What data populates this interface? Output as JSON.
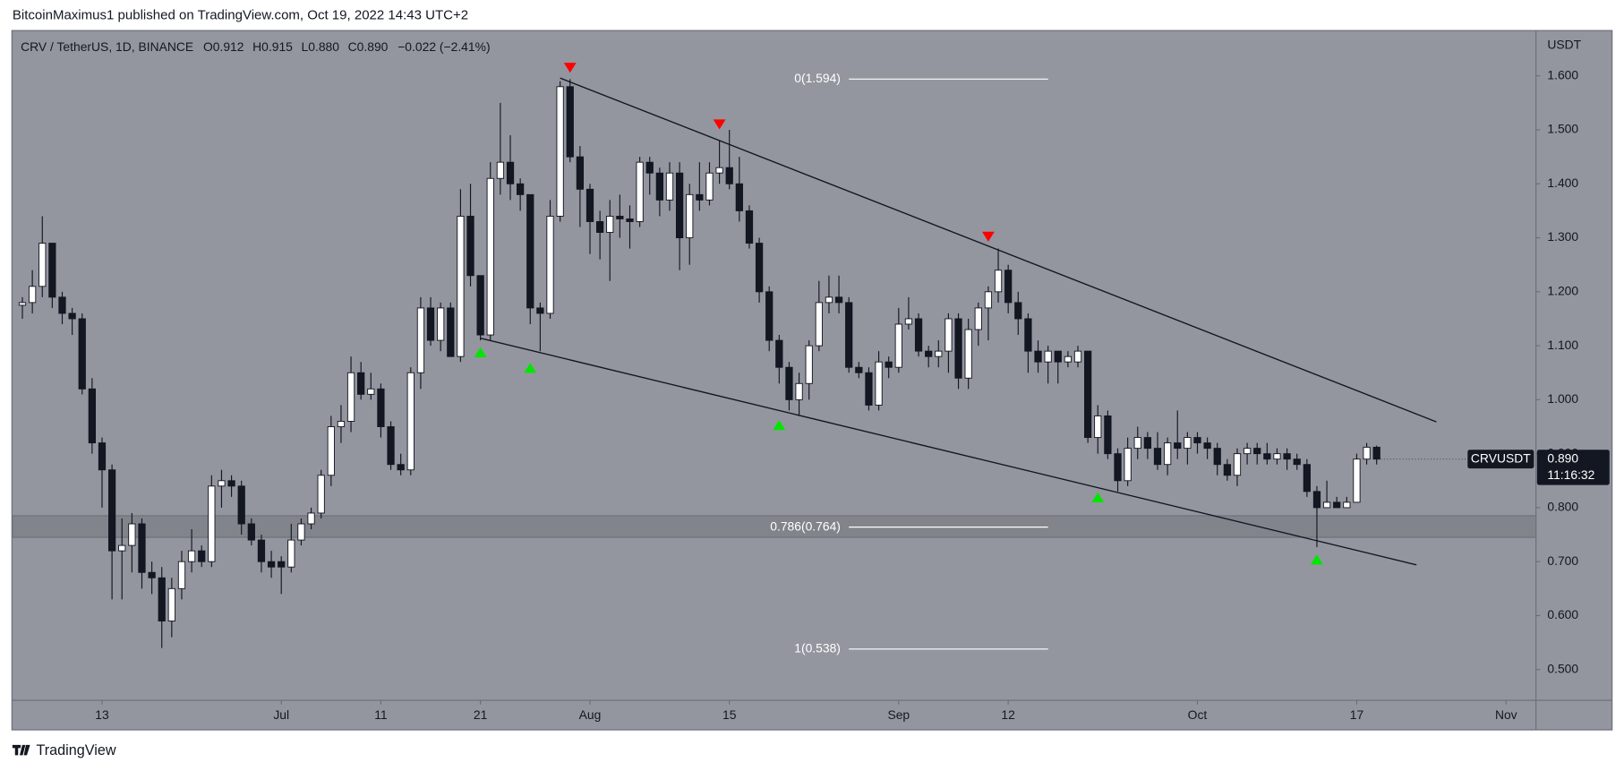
{
  "header": "BitcoinMaximus1 published on TradingView.com, Oct 19, 2022 14:43 UTC+2",
  "footer": "TradingView",
  "chart_data": {
    "type": "candlestick",
    "symbol": "CRV / TetherUS, 1D, BINANCE",
    "ohlc_labels": [
      "O",
      "H",
      "L",
      "C"
    ],
    "ohlc_values": [
      "0.912",
      "0.915",
      "0.880",
      "0.890"
    ],
    "change": "−0.022 (−2.41%)",
    "y_axis_label": "USDT",
    "price_tag": {
      "symbol": "CRVUSDT",
      "price": "0.890",
      "countdown": "11:16:32"
    },
    "up_color": "#ffffff",
    "down_color": "#131722",
    "wick_color": "#131722",
    "xlim": [
      "2022-06-04",
      "2022-11-04"
    ],
    "ylim": [
      0.443,
      1.683
    ],
    "yticks": [
      {
        "value": 0.5,
        "label": "0.500"
      },
      {
        "value": 0.6,
        "label": "0.600"
      },
      {
        "value": 0.7,
        "label": "0.700"
      },
      {
        "value": 0.8,
        "label": "0.800"
      },
      {
        "value": 0.9,
        "label": "0.900"
      },
      {
        "value": 1.0,
        "label": "1.000"
      },
      {
        "value": 1.1,
        "label": "1.100"
      },
      {
        "value": 1.2,
        "label": "1.200"
      },
      {
        "value": 1.3,
        "label": "1.300"
      },
      {
        "value": 1.4,
        "label": "1.400"
      },
      {
        "value": 1.5,
        "label": "1.500"
      },
      {
        "value": 1.6,
        "label": "1.600"
      }
    ],
    "xticks": [
      {
        "value": "2022-06-13",
        "label": "13"
      },
      {
        "value": "2022-07-01",
        "label": "Jul"
      },
      {
        "value": "2022-07-11",
        "label": "11"
      },
      {
        "value": "2022-07-21",
        "label": "21"
      },
      {
        "value": "2022-08-01",
        "label": "Aug"
      },
      {
        "value": "2022-08-15",
        "label": "15"
      },
      {
        "value": "2022-09-01",
        "label": "Sep"
      },
      {
        "value": "2022-09-12",
        "label": "12"
      },
      {
        "value": "2022-10-01",
        "label": "Oct"
      },
      {
        "value": "2022-10-17",
        "label": "17"
      },
      {
        "value": "2022-11-01",
        "label": "Nov"
      }
    ],
    "grid": false,
    "x": [
      "2022-06-05",
      "2022-06-06",
      "2022-06-07",
      "2022-06-08",
      "2022-06-09",
      "2022-06-10",
      "2022-06-11",
      "2022-06-12",
      "2022-06-13",
      "2022-06-14",
      "2022-06-15",
      "2022-06-16",
      "2022-06-17",
      "2022-06-18",
      "2022-06-19",
      "2022-06-20",
      "2022-06-21",
      "2022-06-22",
      "2022-06-23",
      "2022-06-24",
      "2022-06-25",
      "2022-06-26",
      "2022-06-27",
      "2022-06-28",
      "2022-06-29",
      "2022-06-30",
      "2022-07-01",
      "2022-07-02",
      "2022-07-03",
      "2022-07-04",
      "2022-07-05",
      "2022-07-06",
      "2022-07-07",
      "2022-07-08",
      "2022-07-09",
      "2022-07-10",
      "2022-07-11",
      "2022-07-12",
      "2022-07-13",
      "2022-07-14",
      "2022-07-15",
      "2022-07-16",
      "2022-07-17",
      "2022-07-18",
      "2022-07-19",
      "2022-07-20",
      "2022-07-21",
      "2022-07-22",
      "2022-07-23",
      "2022-07-24",
      "2022-07-25",
      "2022-07-26",
      "2022-07-27",
      "2022-07-28",
      "2022-07-29",
      "2022-07-30",
      "2022-07-31",
      "2022-08-01",
      "2022-08-02",
      "2022-08-03",
      "2022-08-04",
      "2022-08-05",
      "2022-08-06",
      "2022-08-07",
      "2022-08-08",
      "2022-08-09",
      "2022-08-10",
      "2022-08-11",
      "2022-08-12",
      "2022-08-13",
      "2022-08-14",
      "2022-08-15",
      "2022-08-16",
      "2022-08-17",
      "2022-08-18",
      "2022-08-19",
      "2022-08-20",
      "2022-08-21",
      "2022-08-22",
      "2022-08-23",
      "2022-08-24",
      "2022-08-25",
      "2022-08-26",
      "2022-08-27",
      "2022-08-28",
      "2022-08-29",
      "2022-08-30",
      "2022-08-31",
      "2022-09-01",
      "2022-09-02",
      "2022-09-03",
      "2022-09-04",
      "2022-09-05",
      "2022-09-06",
      "2022-09-07",
      "2022-09-08",
      "2022-09-09",
      "2022-09-10",
      "2022-09-11",
      "2022-09-12",
      "2022-09-13",
      "2022-09-14",
      "2022-09-15",
      "2022-09-16",
      "2022-09-17",
      "2022-09-18",
      "2022-09-19",
      "2022-09-20",
      "2022-09-21",
      "2022-09-22",
      "2022-09-23",
      "2022-09-24",
      "2022-09-25",
      "2022-09-26",
      "2022-09-27",
      "2022-09-28",
      "2022-09-29",
      "2022-09-30",
      "2022-10-01",
      "2022-10-02",
      "2022-10-03",
      "2022-10-04",
      "2022-10-05",
      "2022-10-06",
      "2022-10-07",
      "2022-10-08",
      "2022-10-09",
      "2022-10-10",
      "2022-10-11",
      "2022-10-12",
      "2022-10-13",
      "2022-10-14",
      "2022-10-15",
      "2022-10-16",
      "2022-10-17",
      "2022-10-18",
      "2022-10-19"
    ],
    "open": [
      1.175,
      1.18,
      1.21,
      1.29,
      1.19,
      1.16,
      1.15,
      1.02,
      0.92,
      0.87,
      0.72,
      0.73,
      0.77,
      0.68,
      0.67,
      0.59,
      0.65,
      0.7,
      0.72,
      0.7,
      0.84,
      0.85,
      0.84,
      0.77,
      0.74,
      0.7,
      0.7,
      0.69,
      0.74,
      0.77,
      0.79,
      0.86,
      0.95,
      0.96,
      1.05,
      1.01,
      1.02,
      0.95,
      0.88,
      0.87,
      1.05,
      1.17,
      1.11,
      1.17,
      1.08,
      1.34,
      1.23,
      1.12,
      1.41,
      1.44,
      1.4,
      1.38,
      1.17,
      1.16,
      1.34,
      1.58,
      1.45,
      1.39,
      1.33,
      1.31,
      1.34,
      1.335,
      1.33,
      1.44,
      1.42,
      1.37,
      1.42,
      1.3,
      1.38,
      1.37,
      1.42,
      1.43,
      1.4,
      1.35,
      1.29,
      1.2,
      1.11,
      1.06,
      1.0,
      1.03,
      1.1,
      1.18,
      1.19,
      1.18,
      1.06,
      1.05,
      0.99,
      1.07,
      1.06,
      1.14,
      1.15,
      1.09,
      1.08,
      1.09,
      1.15,
      1.04,
      1.13,
      1.17,
      1.2,
      1.24,
      1.18,
      1.15,
      1.09,
      1.07,
      1.09,
      1.07,
      1.07,
      1.09,
      0.93,
      0.97,
      0.9,
      0.85,
      0.91,
      0.93,
      0.91,
      0.88,
      0.92,
      0.91,
      0.93,
      0.92,
      0.91,
      0.88,
      0.86,
      0.9,
      0.91,
      0.9,
      0.89,
      0.9,
      0.89,
      0.88,
      0.83,
      0.8,
      0.81,
      0.8,
      0.81,
      0.89,
      0.912
    ],
    "high": [
      1.19,
      1.24,
      1.34,
      1.29,
      1.2,
      1.17,
      1.16,
      1.04,
      0.93,
      0.88,
      0.78,
      0.79,
      0.78,
      0.7,
      0.69,
      0.67,
      0.72,
      0.76,
      0.73,
      0.86,
      0.87,
      0.86,
      0.85,
      0.78,
      0.75,
      0.72,
      0.71,
      0.77,
      0.78,
      0.8,
      0.87,
      0.97,
      0.99,
      1.08,
      1.07,
      1.05,
      1.03,
      0.96,
      0.9,
      1.06,
      1.19,
      1.19,
      1.18,
      1.18,
      1.39,
      1.4,
      1.23,
      1.44,
      1.55,
      1.49,
      1.41,
      1.38,
      1.18,
      1.37,
      1.59,
      1.594,
      1.47,
      1.4,
      1.35,
      1.37,
      1.38,
      1.36,
      1.45,
      1.45,
      1.43,
      1.44,
      1.44,
      1.4,
      1.44,
      1.44,
      1.48,
      1.5,
      1.45,
      1.36,
      1.3,
      1.21,
      1.12,
      1.07,
      1.05,
      1.11,
      1.22,
      1.23,
      1.23,
      1.19,
      1.07,
      1.06,
      1.09,
      1.08,
      1.17,
      1.19,
      1.16,
      1.1,
      1.11,
      1.16,
      1.16,
      1.15,
      1.18,
      1.21,
      1.28,
      1.25,
      1.2,
      1.16,
      1.11,
      1.1,
      1.09,
      1.09,
      1.1,
      1.09,
      0.99,
      0.98,
      0.91,
      0.93,
      0.95,
      0.94,
      0.94,
      0.93,
      0.98,
      0.94,
      0.94,
      0.93,
      0.92,
      0.89,
      0.91,
      0.92,
      0.92,
      0.92,
      0.91,
      0.91,
      0.9,
      0.89,
      0.84,
      0.85,
      0.82,
      0.82,
      0.9,
      0.92,
      0.915
    ],
    "low": [
      1.15,
      1.16,
      1.19,
      1.17,
      1.14,
      1.12,
      1.01,
      0.9,
      0.8,
      0.63,
      0.63,
      0.68,
      0.65,
      0.64,
      0.54,
      0.56,
      0.63,
      0.68,
      0.69,
      0.69,
      0.8,
      0.82,
      0.75,
      0.73,
      0.68,
      0.67,
      0.64,
      0.68,
      0.73,
      0.76,
      0.78,
      0.84,
      0.92,
      0.94,
      1.0,
      1.0,
      0.93,
      0.87,
      0.86,
      0.86,
      1.02,
      1.1,
      1.09,
      1.08,
      1.07,
      1.21,
      1.11,
      1.11,
      1.38,
      1.37,
      1.35,
      1.14,
      1.09,
      1.15,
      1.33,
      1.44,
      1.32,
      1.27,
      1.26,
      1.22,
      1.3,
      1.28,
      1.32,
      1.38,
      1.34,
      1.35,
      1.24,
      1.25,
      1.35,
      1.36,
      1.4,
      1.39,
      1.33,
      1.28,
      1.18,
      1.09,
      1.03,
      0.98,
      0.97,
      1.0,
      1.09,
      1.16,
      1.16,
      1.05,
      1.04,
      0.98,
      0.98,
      1.04,
      1.05,
      1.13,
      1.08,
      1.06,
      1.06,
      1.05,
      1.02,
      1.02,
      1.1,
      1.11,
      1.18,
      1.16,
      1.12,
      1.05,
      1.05,
      1.03,
      1.03,
      1.06,
      1.06,
      0.92,
      0.9,
      0.89,
      0.83,
      0.84,
      0.89,
      0.89,
      0.87,
      0.86,
      0.89,
      0.88,
      0.9,
      0.89,
      0.86,
      0.85,
      0.84,
      0.88,
      0.88,
      0.88,
      0.88,
      0.87,
      0.87,
      0.82,
      0.727,
      0.8,
      0.8,
      0.8,
      0.81,
      0.88,
      0.88
    ],
    "close": [
      1.18,
      1.21,
      1.29,
      1.19,
      1.16,
      1.15,
      1.02,
      0.92,
      0.87,
      0.72,
      0.73,
      0.77,
      0.68,
      0.67,
      0.59,
      0.65,
      0.7,
      0.72,
      0.7,
      0.84,
      0.85,
      0.84,
      0.77,
      0.74,
      0.7,
      0.69,
      0.69,
      0.74,
      0.77,
      0.79,
      0.86,
      0.95,
      0.96,
      1.05,
      1.01,
      1.02,
      0.95,
      0.88,
      0.87,
      1.05,
      1.17,
      1.11,
      1.17,
      1.08,
      1.34,
      1.23,
      1.12,
      1.41,
      1.44,
      1.4,
      1.38,
      1.17,
      1.16,
      1.34,
      1.58,
      1.45,
      1.39,
      1.33,
      1.31,
      1.34,
      1.335,
      1.33,
      1.44,
      1.42,
      1.37,
      1.42,
      1.3,
      1.38,
      1.37,
      1.42,
      1.43,
      1.4,
      1.35,
      1.29,
      1.2,
      1.11,
      1.06,
      1.0,
      1.03,
      1.1,
      1.18,
      1.19,
      1.18,
      1.06,
      1.05,
      0.99,
      1.07,
      1.06,
      1.14,
      1.15,
      1.09,
      1.08,
      1.09,
      1.15,
      1.04,
      1.13,
      1.17,
      1.2,
      1.24,
      1.18,
      1.15,
      1.09,
      1.07,
      1.09,
      1.07,
      1.08,
      1.09,
      0.93,
      0.97,
      0.9,
      0.85,
      0.91,
      0.93,
      0.91,
      0.88,
      0.92,
      0.91,
      0.93,
      0.92,
      0.91,
      0.88,
      0.86,
      0.9,
      0.91,
      0.9,
      0.89,
      0.9,
      0.89,
      0.88,
      0.83,
      0.8,
      0.81,
      0.8,
      0.81,
      0.89,
      0.912,
      0.89
    ],
    "zone": [
      0.745,
      0.785
    ],
    "zone_color": "#7d7f87",
    "fib_x": [
      "2022-08-27",
      "2022-09-16"
    ],
    "fib_levels": [
      {
        "label": "0(1.594)",
        "value": 1.594
      },
      {
        "label": "0.786(0.764)",
        "value": 0.764
      },
      {
        "label": "1(0.538)",
        "value": 0.538
      }
    ],
    "trendlines": [
      {
        "x": [
          "2022-07-29",
          "2022-10-25"
        ],
        "y": [
          1.596,
          0.959
        ]
      },
      {
        "x": [
          "2022-07-21",
          "2022-10-23"
        ],
        "y": [
          1.114,
          0.694
        ]
      }
    ],
    "markers": [
      {
        "x": "2022-07-30",
        "y": 1.615,
        "color": "#ff0000",
        "shape": "down"
      },
      {
        "x": "2022-08-14",
        "y": 1.51,
        "color": "#ff0000",
        "shape": "down"
      },
      {
        "x": "2022-09-10",
        "y": 1.302,
        "color": "#ff0000",
        "shape": "down"
      },
      {
        "x": "2022-07-21",
        "y": 1.088,
        "color": "#00e600",
        "shape": "up"
      },
      {
        "x": "2022-07-26",
        "y": 1.059,
        "color": "#00e600",
        "shape": "up"
      },
      {
        "x": "2022-08-20",
        "y": 0.953,
        "color": "#00e600",
        "shape": "up"
      },
      {
        "x": "2022-09-21",
        "y": 0.819,
        "color": "#00e600",
        "shape": "up"
      },
      {
        "x": "2022-10-13",
        "y": 0.704,
        "color": "#00e600",
        "shape": "up"
      }
    ]
  }
}
